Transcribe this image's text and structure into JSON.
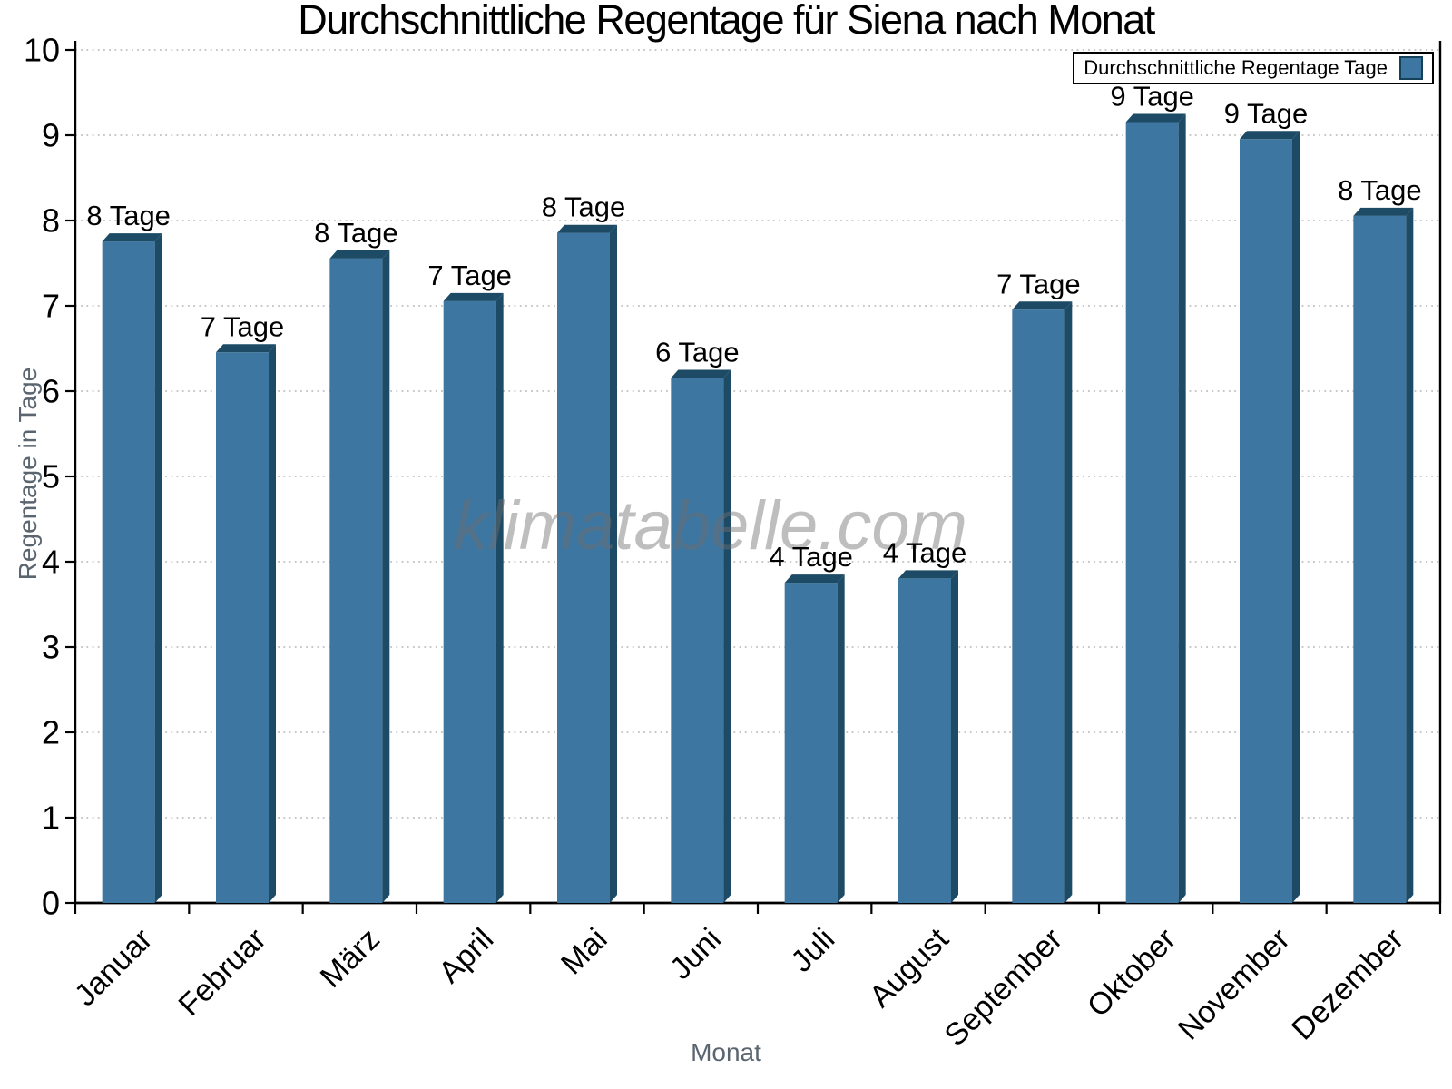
{
  "chart_data": {
    "type": "bar",
    "title": "Durchschnittliche Regentage für Siena nach Monat",
    "xlabel": "Monat",
    "ylabel": "Regentage in Tage",
    "ylim": [
      0,
      10
    ],
    "yticks": [
      0,
      1,
      2,
      3,
      4,
      5,
      6,
      7,
      8,
      9,
      10
    ],
    "categories": [
      "Januar",
      "Februar",
      "März",
      "April",
      "Mai",
      "Juni",
      "Juli",
      "August",
      "September",
      "Oktober",
      "November",
      "Dezember"
    ],
    "values": [
      7.85,
      6.55,
      7.65,
      7.15,
      7.95,
      6.25,
      3.85,
      3.9,
      7.05,
      9.25,
      9.05,
      8.15
    ],
    "bar_labels": [
      "8 Tage",
      "7 Tage",
      "8 Tage",
      "7 Tage",
      "8 Tage",
      "6 Tage",
      "4 Tage",
      "4 Tage",
      "7 Tage",
      "9 Tage",
      "9 Tage",
      "8 Tage"
    ],
    "legend": {
      "label": "Durchschnittliche Regentage Tage",
      "position": "top-right"
    },
    "watermark": "klimatabelle.com",
    "grid": true,
    "legend_on": true,
    "colors": {
      "bar_front": "#3D76A0",
      "bar_side": "#1D4B66",
      "bar_top": "#1D4B66",
      "grid": "#b5b5b5",
      "axis": "#000000",
      "tick_label": "#000000",
      "axis_title": "#5a6570",
      "watermark": "rgba(110,110,110,0.45)",
      "background": "#ffffff"
    }
  }
}
